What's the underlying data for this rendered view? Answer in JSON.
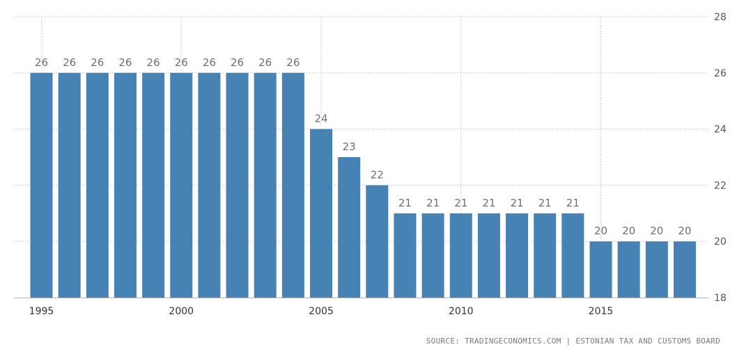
{
  "source": "SOURCE: TRADINGECONOMICS.COM | ESTONIAN TAX AND CUSTOMS BOARD",
  "colors": {
    "bar": "#4682b4",
    "grid": "#cccccc",
    "axis_text": "#555555",
    "label_text": "#6e6e6e",
    "baseline": "#b5b5b5"
  },
  "chart_data": {
    "type": "bar",
    "categories": [
      "1995",
      "1996",
      "1997",
      "1998",
      "1999",
      "2000",
      "2001",
      "2002",
      "2003",
      "2004",
      "2005",
      "2006",
      "2007",
      "2008",
      "2009",
      "2010",
      "2011",
      "2012",
      "2013",
      "2014",
      "2015",
      "2016",
      "2017",
      "2018"
    ],
    "values": [
      26,
      26,
      26,
      26,
      26,
      26,
      26,
      26,
      26,
      26,
      24,
      23,
      22,
      21,
      21,
      21,
      21,
      21,
      21,
      21,
      20,
      20,
      20,
      20
    ],
    "x_tick_labels": [
      "1995",
      "2000",
      "2005",
      "2010",
      "2015"
    ],
    "y_ticks": [
      18,
      20,
      22,
      24,
      26,
      28
    ],
    "ylim": [
      18,
      28
    ],
    "ylabel_position": "right",
    "grid": true,
    "data_labels": true,
    "title": "",
    "xlabel": "",
    "ylabel": ""
  }
}
